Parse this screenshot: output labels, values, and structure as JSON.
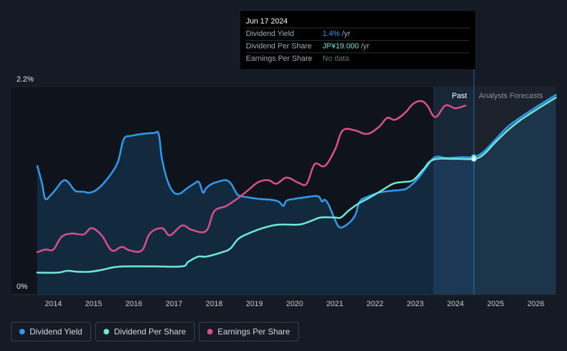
{
  "chart_data": {
    "type": "line",
    "title": "",
    "x_range": [
      2013.6,
      2026.5
    ],
    "ylim": [
      0,
      2.2
    ],
    "y_unit": "%",
    "y_tick_labels": [
      "2.2%",
      "0%"
    ],
    "x_tick_labels": [
      "2014",
      "2015",
      "2016",
      "2017",
      "2018",
      "2019",
      "2020",
      "2021",
      "2022",
      "2023",
      "2024",
      "2025",
      "2026"
    ],
    "x_ticks": [
      2014,
      2015,
      2016,
      2017,
      2018,
      2019,
      2020,
      2021,
      2022,
      2023,
      2024,
      2025,
      2026
    ],
    "past_label": "Past",
    "forecast_label": "Analysts Forecasts",
    "highlight_range": [
      2023.45,
      2024.46
    ],
    "present_x": 2024.46,
    "series": [
      {
        "name": "Dividend Yield",
        "color": "#2d9bf0",
        "fill": true,
        "points": [
          [
            2013.6,
            1.32
          ],
          [
            2013.72,
            1.12
          ],
          [
            2013.8,
            0.95
          ],
          [
            2013.95,
            1.0
          ],
          [
            2014.1,
            1.08
          ],
          [
            2014.2,
            1.14
          ],
          [
            2014.3,
            1.16
          ],
          [
            2014.4,
            1.12
          ],
          [
            2014.55,
            1.04
          ],
          [
            2014.75,
            1.03
          ],
          [
            2014.9,
            1.02
          ],
          [
            2015.1,
            1.06
          ],
          [
            2015.35,
            1.18
          ],
          [
            2015.6,
            1.36
          ],
          [
            2015.75,
            1.62
          ],
          [
            2015.95,
            1.66
          ],
          [
            2016.2,
            1.68
          ],
          [
            2016.5,
            1.69
          ],
          [
            2016.62,
            1.68
          ],
          [
            2016.7,
            1.4
          ],
          [
            2016.85,
            1.14
          ],
          [
            2017.0,
            1.02
          ],
          [
            2017.15,
            1.01
          ],
          [
            2017.3,
            1.06
          ],
          [
            2017.5,
            1.12
          ],
          [
            2017.62,
            1.14
          ],
          [
            2017.72,
            1.02
          ],
          [
            2017.8,
            1.07
          ],
          [
            2017.95,
            1.12
          ],
          [
            2018.15,
            1.15
          ],
          [
            2018.3,
            1.16
          ],
          [
            2018.42,
            1.12
          ],
          [
            2018.52,
            1.04
          ],
          [
            2018.6,
            0.99
          ],
          [
            2018.8,
            0.97
          ],
          [
            2019.1,
            0.95
          ],
          [
            2019.4,
            0.94
          ],
          [
            2019.6,
            0.92
          ],
          [
            2019.72,
            0.87
          ],
          [
            2019.8,
            0.93
          ],
          [
            2020.0,
            0.95
          ],
          [
            2020.3,
            0.97
          ],
          [
            2020.58,
            0.98
          ],
          [
            2020.68,
            0.92
          ],
          [
            2020.75,
            0.94
          ],
          [
            2020.85,
            0.88
          ],
          [
            2021.0,
            0.72
          ],
          [
            2021.12,
            0.63
          ],
          [
            2021.3,
            0.66
          ],
          [
            2021.5,
            0.76
          ],
          [
            2021.62,
            0.92
          ],
          [
            2021.8,
            0.97
          ],
          [
            2022.1,
            1.02
          ],
          [
            2022.4,
            1.04
          ],
          [
            2022.65,
            1.05
          ],
          [
            2022.8,
            1.07
          ],
          [
            2023.05,
            1.17
          ],
          [
            2023.3,
            1.32
          ],
          [
            2023.5,
            1.42
          ],
          [
            2023.8,
            1.41
          ],
          [
            2024.2,
            1.42
          ],
          [
            2024.46,
            1.42
          ],
          [
            2024.7,
            1.48
          ],
          [
            2025.0,
            1.62
          ],
          [
            2025.3,
            1.76
          ],
          [
            2025.6,
            1.86
          ],
          [
            2026.0,
            1.98
          ],
          [
            2026.5,
            2.12
          ]
        ]
      },
      {
        "name": "Dividend Per Share",
        "color": "#6ee8d4",
        "fill": false,
        "points": [
          [
            2013.6,
            0.12
          ],
          [
            2014.1,
            0.12
          ],
          [
            2014.35,
            0.14
          ],
          [
            2014.6,
            0.13
          ],
          [
            2014.9,
            0.13
          ],
          [
            2015.2,
            0.15
          ],
          [
            2015.5,
            0.18
          ],
          [
            2015.8,
            0.19
          ],
          [
            2016.5,
            0.19
          ],
          [
            2017.2,
            0.19
          ],
          [
            2017.35,
            0.24
          ],
          [
            2017.6,
            0.3
          ],
          [
            2017.8,
            0.3
          ],
          [
            2018.2,
            0.35
          ],
          [
            2018.4,
            0.39
          ],
          [
            2018.6,
            0.5
          ],
          [
            2018.85,
            0.56
          ],
          [
            2019.2,
            0.62
          ],
          [
            2019.6,
            0.66
          ],
          [
            2020.1,
            0.66
          ],
          [
            2020.4,
            0.7
          ],
          [
            2020.65,
            0.74
          ],
          [
            2021.0,
            0.74
          ],
          [
            2021.15,
            0.74
          ],
          [
            2021.35,
            0.82
          ],
          [
            2021.6,
            0.9
          ],
          [
            2021.85,
            0.96
          ],
          [
            2022.15,
            1.04
          ],
          [
            2022.45,
            1.12
          ],
          [
            2022.7,
            1.14
          ],
          [
            2022.95,
            1.16
          ],
          [
            2023.2,
            1.28
          ],
          [
            2023.45,
            1.39
          ],
          [
            2024.0,
            1.4
          ],
          [
            2024.46,
            1.4
          ],
          [
            2024.7,
            1.45
          ],
          [
            2025.0,
            1.59
          ],
          [
            2025.3,
            1.72
          ],
          [
            2025.6,
            1.83
          ],
          [
            2026.0,
            1.95
          ],
          [
            2026.5,
            2.09
          ]
        ]
      },
      {
        "name": "Earnings Per Share",
        "color": "#d94f8a",
        "fill": false,
        "points": [
          [
            2013.6,
            0.35
          ],
          [
            2013.8,
            0.38
          ],
          [
            2014.0,
            0.38
          ],
          [
            2014.2,
            0.52
          ],
          [
            2014.45,
            0.56
          ],
          [
            2014.75,
            0.55
          ],
          [
            2014.95,
            0.62
          ],
          [
            2015.2,
            0.54
          ],
          [
            2015.45,
            0.37
          ],
          [
            2015.7,
            0.41
          ],
          [
            2015.9,
            0.37
          ],
          [
            2016.2,
            0.37
          ],
          [
            2016.4,
            0.56
          ],
          [
            2016.7,
            0.62
          ],
          [
            2016.9,
            0.54
          ],
          [
            2017.2,
            0.65
          ],
          [
            2017.45,
            0.6
          ],
          [
            2017.8,
            0.59
          ],
          [
            2018.0,
            0.81
          ],
          [
            2018.3,
            0.87
          ],
          [
            2018.6,
            0.96
          ],
          [
            2018.85,
            1.05
          ],
          [
            2019.1,
            1.14
          ],
          [
            2019.35,
            1.16
          ],
          [
            2019.55,
            1.12
          ],
          [
            2019.8,
            1.19
          ],
          [
            2020.1,
            1.13
          ],
          [
            2020.3,
            1.12
          ],
          [
            2020.5,
            1.34
          ],
          [
            2020.75,
            1.32
          ],
          [
            2021.0,
            1.5
          ],
          [
            2021.2,
            1.72
          ],
          [
            2021.5,
            1.72
          ],
          [
            2021.8,
            1.68
          ],
          [
            2022.1,
            1.76
          ],
          [
            2022.3,
            1.86
          ],
          [
            2022.5,
            1.84
          ],
          [
            2022.75,
            1.92
          ],
          [
            2022.95,
            2.02
          ],
          [
            2023.15,
            2.05
          ],
          [
            2023.3,
            2.0
          ],
          [
            2023.5,
            1.87
          ],
          [
            2023.75,
            2.0
          ],
          [
            2024.0,
            1.97
          ],
          [
            2024.25,
            2.0
          ]
        ]
      }
    ]
  },
  "tooltip": {
    "date": "Jun 17 2024",
    "rows": [
      {
        "label": "Dividend Yield",
        "value": "1.4%",
        "unit": "/yr",
        "color": "#2d9bf0"
      },
      {
        "label": "Dividend Per Share",
        "value": "JP¥19.000",
        "unit": "/yr",
        "color": "#6ee8d4"
      },
      {
        "label": "Earnings Per Share",
        "nodata": "No data"
      }
    ]
  },
  "legend": [
    {
      "label": "Dividend Yield",
      "color": "#2d9bf0"
    },
    {
      "label": "Dividend Per Share",
      "color": "#6ee8d4"
    },
    {
      "label": "Earnings Per Share",
      "color": "#d94f8a"
    }
  ]
}
